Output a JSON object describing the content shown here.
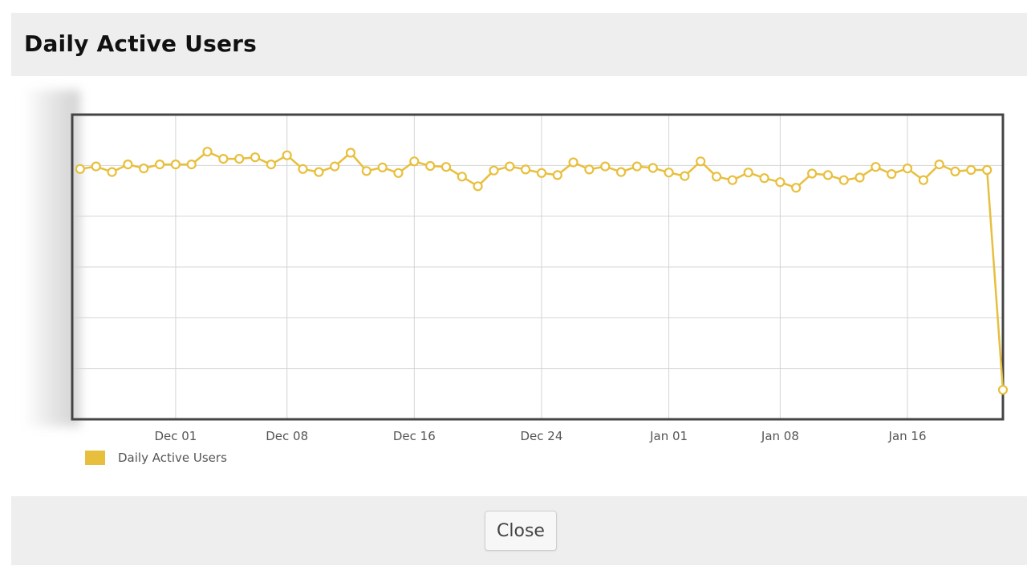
{
  "modal": {
    "title": "Daily Active Users",
    "close_label": "Close"
  },
  "colors": {
    "series": "#e8bf3c",
    "grid": "#d4d4d4",
    "frame": "#444444",
    "header_bg": "#eeeeee"
  },
  "chart_data": {
    "type": "line",
    "title": "",
    "xlabel": "",
    "ylabel": "",
    "x_axis": "date",
    "xticks": [
      {
        "date": "2023-12-01",
        "label": "Dec 01"
      },
      {
        "date": "2023-12-08",
        "label": "Dec 08"
      },
      {
        "date": "2023-12-16",
        "label": "Dec 16"
      },
      {
        "date": "2023-12-24",
        "label": "Dec 24"
      },
      {
        "date": "2024-01-01",
        "label": "Jan 01"
      },
      {
        "date": "2024-01-08",
        "label": "Jan 08"
      },
      {
        "date": "2024-01-16",
        "label": "Jan 16"
      }
    ],
    "xlim": [
      "2023-11-24T12:00:00",
      "2024-01-22"
    ],
    "ylim": [
      0,
      6
    ],
    "y_gridlines": 6,
    "grid": true,
    "legend": "bottom-left",
    "series": [
      {
        "name": "Daily Active Users",
        "color": "#e8bf3c",
        "x": [
          "2023-11-25",
          "2023-11-26",
          "2023-11-27",
          "2023-11-28",
          "2023-11-29",
          "2023-11-30",
          "2023-12-01",
          "2023-12-02",
          "2023-12-03",
          "2023-12-04",
          "2023-12-05",
          "2023-12-06",
          "2023-12-07",
          "2023-12-08",
          "2023-12-09",
          "2023-12-10",
          "2023-12-11",
          "2023-12-12",
          "2023-12-13",
          "2023-12-14",
          "2023-12-15",
          "2023-12-16",
          "2023-12-17",
          "2023-12-18",
          "2023-12-19",
          "2023-12-20",
          "2023-12-21",
          "2023-12-22",
          "2023-12-23",
          "2023-12-24",
          "2023-12-25",
          "2023-12-26",
          "2023-12-27",
          "2023-12-28",
          "2023-12-29",
          "2023-12-30",
          "2023-12-31",
          "2024-01-01",
          "2024-01-02",
          "2024-01-03",
          "2024-01-04",
          "2024-01-05",
          "2024-01-06",
          "2024-01-07",
          "2024-01-08",
          "2024-01-09",
          "2024-01-10",
          "2024-01-11",
          "2024-01-12",
          "2024-01-13",
          "2024-01-14",
          "2024-01-15",
          "2024-01-16",
          "2024-01-17",
          "2024-01-18",
          "2024-01-19",
          "2024-01-20",
          "2024-01-21",
          "2024-01-22"
        ],
        "values": [
          4.93,
          4.98,
          4.87,
          5.02,
          4.94,
          5.02,
          5.02,
          5.02,
          5.27,
          5.13,
          5.13,
          5.16,
          5.02,
          5.2,
          4.93,
          4.87,
          4.98,
          5.25,
          4.89,
          4.96,
          4.85,
          5.08,
          4.99,
          4.97,
          4.78,
          4.59,
          4.9,
          4.98,
          4.92,
          4.85,
          4.81,
          5.06,
          4.92,
          4.98,
          4.87,
          4.98,
          4.95,
          4.86,
          4.79,
          5.08,
          4.78,
          4.71,
          4.86,
          4.75,
          4.67,
          4.56,
          4.84,
          4.81,
          4.71,
          4.76,
          4.97,
          4.83,
          4.94,
          4.71,
          5.02,
          4.88,
          4.91,
          4.91,
          0.58
        ]
      }
    ]
  }
}
